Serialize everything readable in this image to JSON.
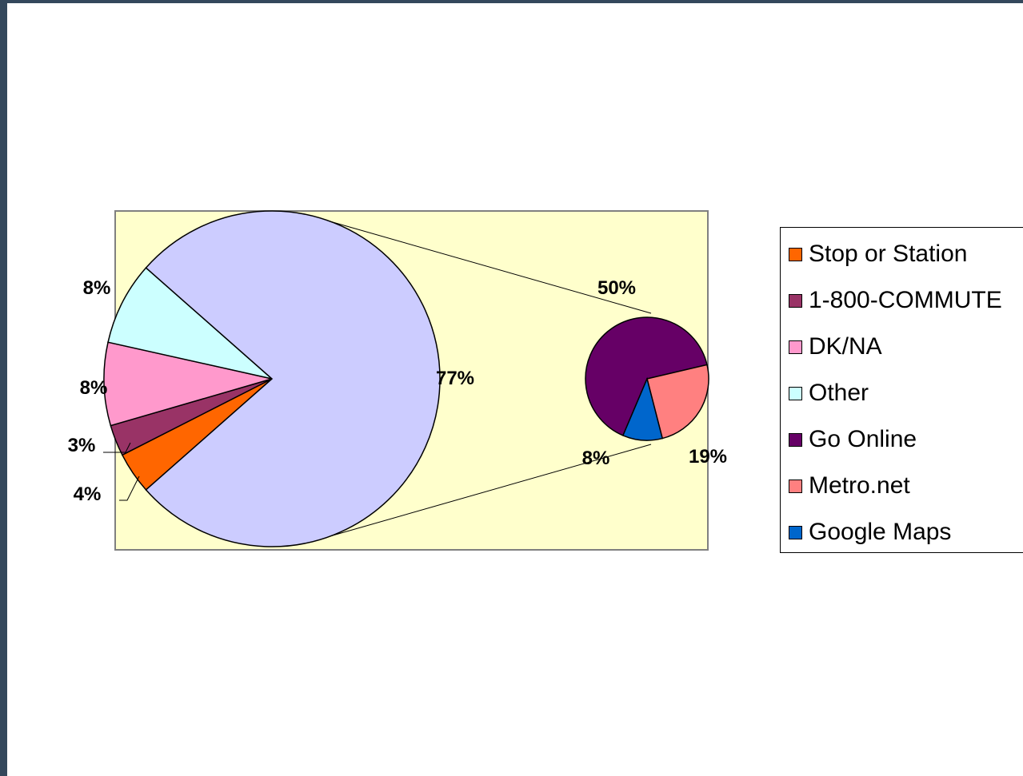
{
  "chart_data": {
    "type": "pie",
    "subtype": "pie-of-pie",
    "main_pie": [
      {
        "label": "Stop or Station",
        "value": 4,
        "color": "#ff6600"
      },
      {
        "label": "1-800-COMMUTE",
        "value": 3,
        "color": "#993366"
      },
      {
        "label": "DK/NA",
        "value": 8,
        "color": "#ff99cc"
      },
      {
        "label": "Other",
        "value": 8,
        "color": "#ccffff"
      },
      {
        "label": "",
        "value": 77,
        "color": "#ccccff"
      }
    ],
    "secondary_pie": [
      {
        "label": "Go Online",
        "value": 50,
        "color": "#660066"
      },
      {
        "label": "Metro.net",
        "value": 19,
        "color": "#ff8080"
      },
      {
        "label": "Google Maps",
        "value": 8,
        "color": "#0066cc"
      }
    ],
    "data_labels": [
      "4%",
      "3%",
      "8%",
      "8%",
      "77%",
      "50%",
      "19%",
      "8%"
    ],
    "plot_background": "#ffffcc",
    "legend": {
      "placement": "right",
      "entries": [
        {
          "label": "Stop or Station",
          "color": "#ff6600"
        },
        {
          "label": "1-800-COMMUTE",
          "color": "#993366"
        },
        {
          "label": "DK/NA",
          "color": "#ff99cc"
        },
        {
          "label": "Other",
          "color": "#ccffff"
        },
        {
          "label": "Go Online",
          "color": "#660066"
        },
        {
          "label": "Metro.net",
          "color": "#ff8080"
        },
        {
          "label": "Google Maps",
          "color": "#0066cc"
        }
      ]
    }
  }
}
